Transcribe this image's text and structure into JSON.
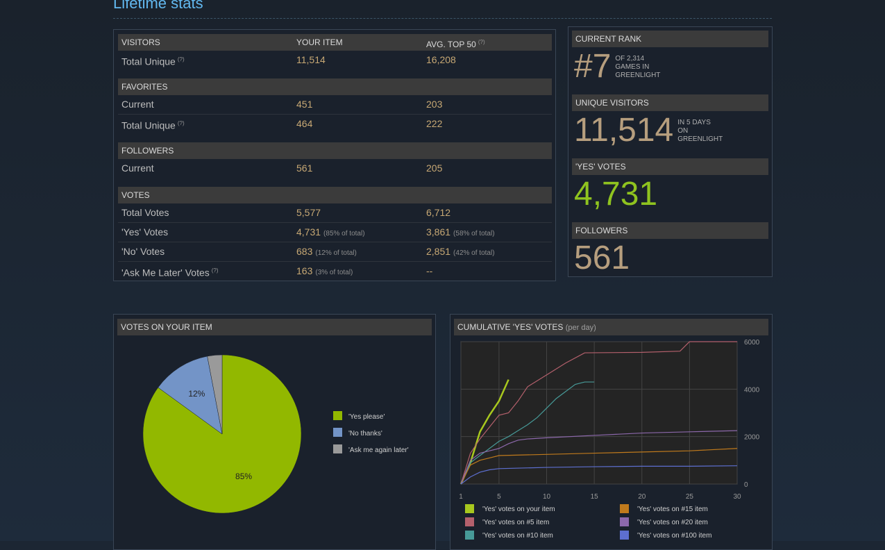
{
  "title": "Lifetime stats",
  "stats_table": {
    "sections": [
      {
        "title": "VISITORS",
        "item": "YOUR ITEM",
        "avg": "AVG. TOP 50",
        "avg_help": "(?)",
        "rows": [
          {
            "label": "Total Unique",
            "help": "(?)",
            "item": "11,514",
            "avg": "16,208"
          }
        ]
      },
      {
        "title": "FAVORITES",
        "rows": [
          {
            "label": "Current",
            "item": "451",
            "avg": "203"
          },
          {
            "label": "Total Unique",
            "help": "(?)",
            "item": "464",
            "avg": "222"
          }
        ]
      },
      {
        "title": "FOLLOWERS",
        "rows": [
          {
            "label": "Current",
            "item": "561",
            "avg": "205"
          }
        ]
      },
      {
        "title": "VOTES",
        "rows": [
          {
            "label": "Total Votes",
            "item": "5,577",
            "avg": "6,712"
          },
          {
            "label": "'Yes' Votes",
            "item": "4,731",
            "item_note": "(85% of total)",
            "avg": "3,861",
            "avg_note": "(58% of total)"
          },
          {
            "label": "'No' Votes",
            "item": "683",
            "item_note": "(12% of total)",
            "avg": "2,851",
            "avg_note": "(42% of total)"
          },
          {
            "label": "'Ask Me Later' Votes",
            "help": "(?)",
            "item": "163",
            "item_note": "(3% of total)",
            "avg": "--"
          }
        ]
      }
    ]
  },
  "side_panel": [
    {
      "title": "CURRENT RANK",
      "value": "#7",
      "note": [
        "OF 2,314",
        "GAMES IN",
        "GREENLIGHT"
      ]
    },
    {
      "title": "UNIQUE VISITORS",
      "value": "11,514",
      "note": [
        "IN 5 DAYS",
        "ON",
        "GREENLIGHT"
      ]
    },
    {
      "title": "'YES' VOTES",
      "value": "4,731",
      "color": "#8fc31f"
    },
    {
      "title": "FOLLOWERS",
      "value": "561"
    }
  ],
  "chart_data": [
    {
      "type": "pie",
      "title": "VOTES ON YOUR ITEM",
      "categories": [
        "'Yes please'",
        "'No thanks'",
        "'Ask me again later'"
      ],
      "values": [
        85,
        12,
        3
      ],
      "value_labels": [
        "85%",
        "12%",
        null
      ],
      "colors": [
        "#92b800",
        "#7394c7",
        "#9a9a9a"
      ]
    },
    {
      "type": "line",
      "title": "CUMULATIVE 'YES' VOTES",
      "subtitle": "(per day)",
      "xlim": [
        1,
        30
      ],
      "xticks": [
        1,
        5,
        10,
        15,
        20,
        25,
        30
      ],
      "ylim": [
        0,
        6000
      ],
      "yticks": [
        0,
        2000,
        4000,
        6000
      ],
      "grid": true,
      "series": [
        {
          "name": "'Yes' votes on your item",
          "color": "#a8c81e",
          "x": [
            1,
            2,
            3,
            4,
            5,
            6
          ],
          "values": [
            0,
            900,
            2200,
            2900,
            3500,
            4400
          ]
        },
        {
          "name": "'Yes' votes on #5 item",
          "color": "#b4606c",
          "x": [
            1,
            2,
            3,
            4,
            5,
            6,
            7,
            8,
            10,
            12,
            14,
            20,
            24,
            25,
            30
          ],
          "values": [
            0,
            1300,
            1900,
            2400,
            2900,
            3000,
            3500,
            4100,
            4600,
            5100,
            5530,
            5550,
            5600,
            6000,
            6000
          ]
        },
        {
          "name": "'Yes' votes on #10 item",
          "color": "#479a98",
          "x": [
            1,
            2,
            3,
            4,
            5,
            6,
            7,
            8,
            9,
            10,
            11,
            12,
            13,
            14,
            15
          ],
          "values": [
            0,
            900,
            1200,
            1500,
            1800,
            2000,
            2250,
            2500,
            2800,
            3200,
            3600,
            3900,
            4200,
            4300,
            4300
          ]
        },
        {
          "name": "'Yes' votes on #15 item",
          "color": "#c07a1c",
          "x": [
            1,
            2,
            3,
            4,
            5,
            10,
            15,
            20,
            25,
            30
          ],
          "values": [
            0,
            800,
            1000,
            1100,
            1200,
            1250,
            1300,
            1350,
            1400,
            1500
          ]
        },
        {
          "name": "'Yes' votes on #20 item",
          "color": "#8c68ab",
          "x": [
            1,
            2,
            3,
            4,
            5,
            6,
            7,
            8,
            10,
            15,
            20,
            25,
            30
          ],
          "values": [
            0,
            1000,
            1300,
            1400,
            1500,
            1700,
            1850,
            1900,
            1950,
            2050,
            2150,
            2200,
            2250
          ]
        },
        {
          "name": "'Yes' votes on #100 item",
          "color": "#5d6fd0",
          "x": [
            1,
            2,
            3,
            4,
            5,
            10,
            15,
            20,
            25,
            30
          ],
          "values": [
            0,
            300,
            500,
            600,
            650,
            700,
            730,
            750,
            750,
            770
          ]
        }
      ]
    }
  ]
}
